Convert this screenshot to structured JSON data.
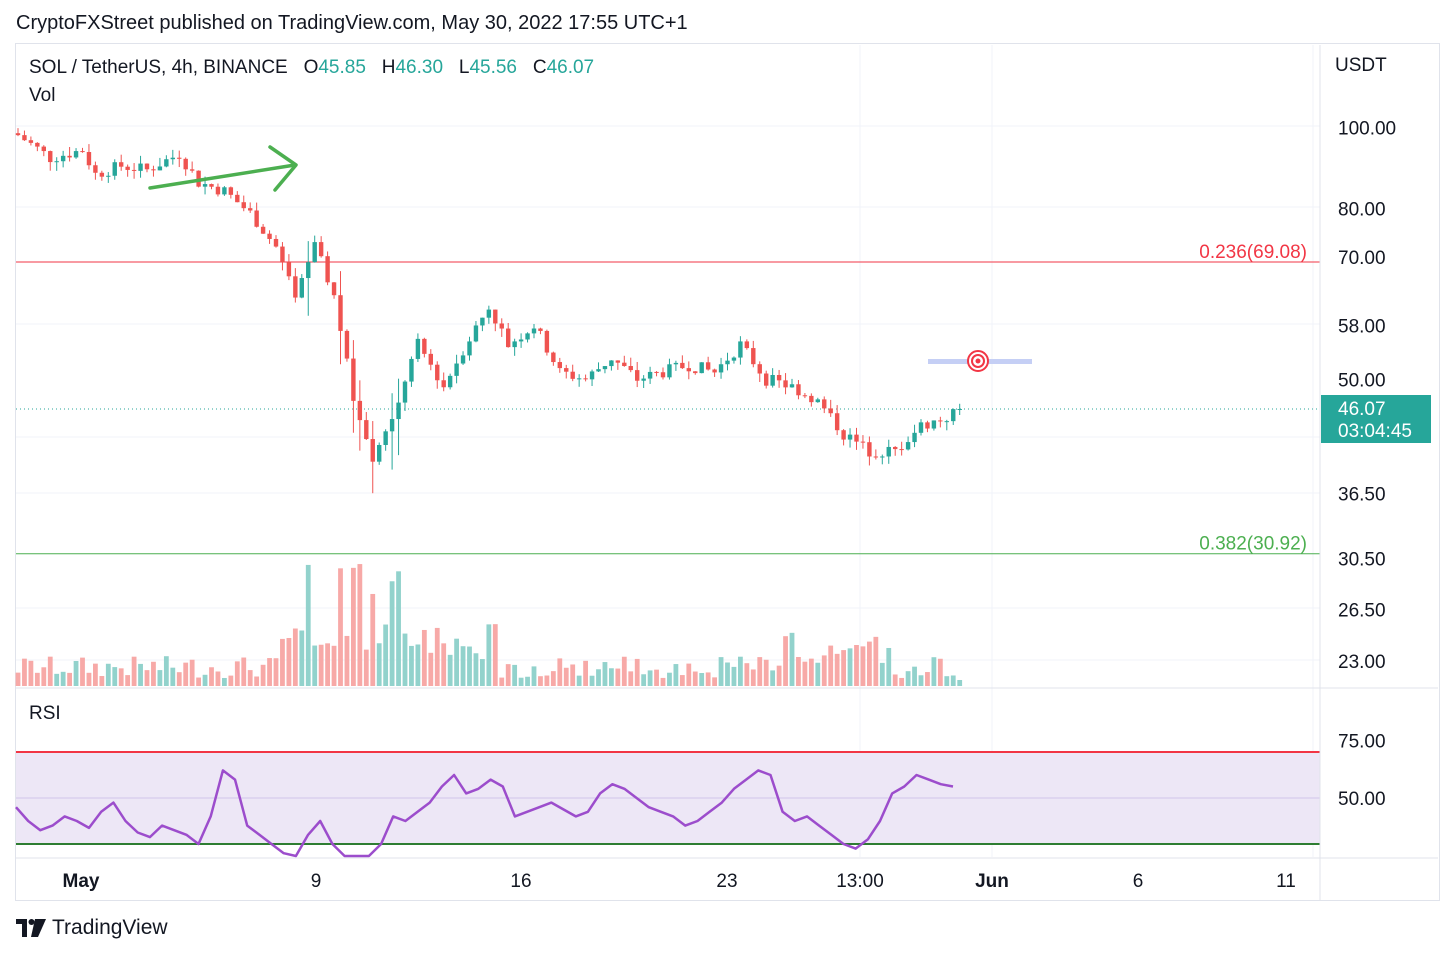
{
  "header": {
    "published": "CryptoFXStreet published on TradingView.com, May 30, 2022 17:55 UTC+1"
  },
  "legend": {
    "symbol": "SOL / TetherUS, 4h, BINANCE",
    "o_label": "O",
    "o_value": "45.85",
    "h_label": "H",
    "h_value": "46.30",
    "l_label": "L",
    "l_value": "45.56",
    "c_label": "C",
    "c_value": "46.07",
    "vol_label": "Vol",
    "rsi_label": "RSI"
  },
  "price_axis": {
    "currency": "USDT",
    "ticks": [
      "100.00",
      "80.00",
      "70.00",
      "58.00",
      "50.00",
      "36.50",
      "30.50",
      "26.50",
      "23.00"
    ]
  },
  "rsi_axis": {
    "ticks": [
      "75.00",
      "50.00"
    ]
  },
  "time_axis": {
    "ticks": [
      "May",
      "9",
      "16",
      "23",
      "13:00",
      "Jun",
      "6",
      "11"
    ]
  },
  "last_price": {
    "value": "46.07",
    "countdown": "03:04:45"
  },
  "fib_levels": [
    {
      "label": "0.236(69.08)",
      "value": 69.08,
      "color": "#f23645"
    },
    {
      "label": "0.382(30.92)",
      "value": 30.92,
      "color": "#4caf50"
    }
  ],
  "colors": {
    "up": "#26a69a",
    "down": "#ef5350",
    "vol_up": "#92d2cc",
    "vol_down": "#f7a9a7",
    "rsi_line": "#9c4dcc",
    "rsi_band": "#ede7f6",
    "rsi_upper": "#f23645",
    "rsi_lower": "#2e7d32",
    "arrow": "#4caf50",
    "target": "#f23645",
    "target_zone": "#c5cff5"
  },
  "footer": {
    "brand": "TradingView"
  },
  "chart_data": {
    "type": "candlestick",
    "title": "SOL / TetherUS, 4h, BINANCE",
    "y_scale": "log",
    "ylabel": "USDT",
    "x_ticks": [
      "May",
      "9",
      "16",
      "23",
      "13:00",
      "Jun",
      "6",
      "11"
    ],
    "annotations": [
      "0.236(69.08)",
      "0.382(30.92)"
    ],
    "close_path": [
      [
        0,
        98
      ],
      [
        5,
        92
      ],
      [
        10,
        94
      ],
      [
        12,
        88
      ],
      [
        16,
        90
      ],
      [
        20,
        89
      ],
      [
        25,
        93
      ],
      [
        28,
        86
      ],
      [
        32,
        84
      ],
      [
        36,
        79
      ],
      [
        40,
        72
      ],
      [
        43,
        62
      ],
      [
        46,
        72
      ],
      [
        49,
        63
      ],
      [
        52,
        47
      ],
      [
        55,
        40
      ],
      [
        58,
        45
      ],
      [
        62,
        55
      ],
      [
        66,
        49
      ],
      [
        70,
        56
      ],
      [
        73,
        61
      ],
      [
        76,
        55
      ],
      [
        80,
        58
      ],
      [
        84,
        51
      ],
      [
        88,
        50
      ],
      [
        92,
        53
      ],
      [
        96,
        50
      ],
      [
        100,
        51
      ],
      [
        104,
        52
      ],
      [
        108,
        51
      ],
      [
        112,
        55
      ],
      [
        116,
        50
      ],
      [
        120,
        49
      ],
      [
        124,
        47
      ],
      [
        128,
        43
      ],
      [
        132,
        41
      ],
      [
        136,
        41
      ],
      [
        140,
        44
      ],
      [
        144,
        45
      ],
      [
        146,
        46.07
      ]
    ],
    "last_close": 46.07,
    "rsi": {
      "levels": [
        70,
        30
      ],
      "values": [
        46,
        40,
        36,
        38,
        42,
        40,
        37,
        44,
        48,
        40,
        35,
        33,
        38,
        36,
        34,
        30,
        42,
        62,
        58,
        38,
        34,
        30,
        26,
        22,
        34,
        40,
        30,
        22,
        18,
        14,
        30,
        42,
        40,
        44,
        48,
        55,
        60,
        52,
        54,
        58,
        55,
        42,
        44,
        46,
        48,
        45,
        42,
        44,
        52,
        56,
        54,
        50,
        46,
        44,
        42,
        38,
        40,
        44,
        48,
        54,
        58,
        62,
        60,
        44,
        40,
        42,
        38,
        34,
        30,
        28,
        32,
        40,
        52,
        55,
        60,
        58,
        56,
        55
      ]
    }
  }
}
